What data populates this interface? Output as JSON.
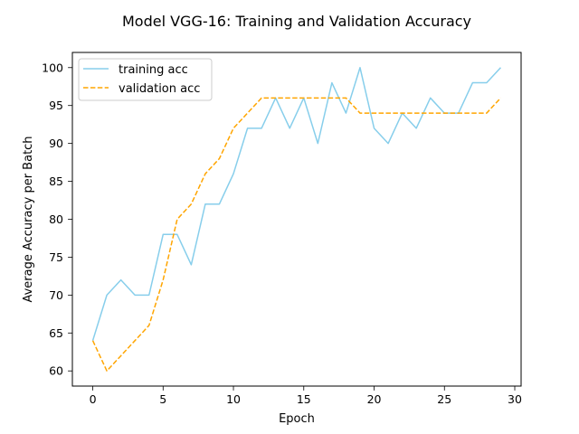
{
  "chart_data": {
    "type": "line",
    "title": "Model VGG-16: Training and Validation Accuracy",
    "xlabel": "Epoch",
    "ylabel": "Average Accuracy per Batch",
    "xlim": [
      -1.45,
      30.45
    ],
    "ylim": [
      58,
      102
    ],
    "xticks": [
      0,
      5,
      10,
      15,
      20,
      25,
      30
    ],
    "yticks": [
      60,
      65,
      70,
      75,
      80,
      85,
      90,
      95,
      100
    ],
    "grid": false,
    "legend_position": "top-left",
    "x": [
      0,
      1,
      2,
      3,
      4,
      5,
      6,
      7,
      8,
      9,
      10,
      11,
      12,
      13,
      14,
      15,
      16,
      17,
      18,
      19,
      20,
      21,
      22,
      23,
      24,
      25,
      26,
      27,
      28,
      29
    ],
    "series": [
      {
        "name": "training acc",
        "color": "#87CEEB",
        "style": "solid",
        "values": [
          64,
          70,
          72,
          70,
          70,
          78,
          78,
          74,
          82,
          82,
          86,
          92,
          92,
          96,
          92,
          96,
          90,
          98,
          94,
          100,
          92,
          90,
          94,
          92,
          96,
          94,
          94,
          98,
          98,
          100
        ]
      },
      {
        "name": "validation acc",
        "color": "#FFA500",
        "style": "dashed",
        "values": [
          64,
          60,
          62,
          64,
          66,
          72,
          80,
          82,
          86,
          88,
          92,
          94,
          96,
          96,
          96,
          96,
          96,
          96,
          96,
          94,
          94,
          94,
          94,
          94,
          94,
          94,
          94,
          94,
          94,
          96
        ]
      }
    ]
  }
}
